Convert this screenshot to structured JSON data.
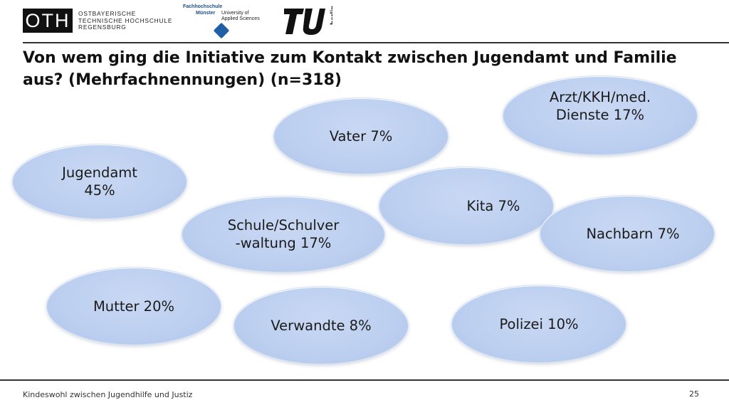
{
  "header": {
    "oth_logo_text": "OTH",
    "oth_name_line1": "OSTBAYERISCHE",
    "oth_name_line2": "TECHNISCHE HOCHSCHULE",
    "oth_name_line3": "REGENSBURG",
    "fh_line1": "Fachhochschule",
    "fh_line2": "Münster",
    "fh_right1": "University of",
    "fh_right2": "Applied Sciences",
    "tu_logo_icon": "tu-berlin-logo-icon",
    "tu_logo_text": "berlin"
  },
  "title": "Von wem ging die Initiative zum Kontakt zwischen Jugendamt und Familie aus? (Mehrfachnennungen) (n=318)",
  "bubbles": [
    {
      "label": "Jugendamt\n       45%",
      "value": 45
    },
    {
      "label": "Vater 7%",
      "value": 7
    },
    {
      "label": "Arzt/KKH/med.\nDienste 17%",
      "value": 17
    },
    {
      "label": "Kita 7%",
      "value": 7
    },
    {
      "label": "Schule/Schulver\n-waltung 17%",
      "value": 17
    },
    {
      "label": "Nachbarn 7%",
      "value": 7
    },
    {
      "label": "Mutter 20%",
      "value": 20
    },
    {
      "label": "Verwandte 8%",
      "value": 8
    },
    {
      "label": "Polizei 10%",
      "value": 10
    }
  ],
  "footer": {
    "text": "Kindeswohl zwischen Jugendhilfe und Justiz",
    "page": "25"
  },
  "colors": {
    "bubble_fill": "#bccff0",
    "text": "#1a1a1a",
    "rule": "#333333"
  }
}
